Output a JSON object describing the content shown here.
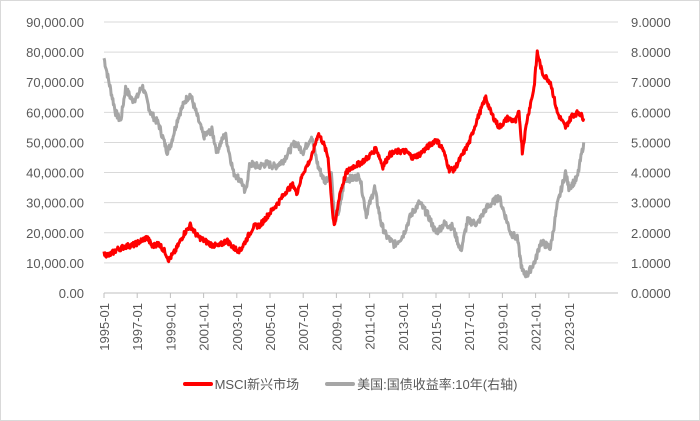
{
  "chart_data": {
    "type": "line",
    "title": "",
    "xlabel": "",
    "ylabel_left": "",
    "ylabel_right": "",
    "x_tick_labels": [
      "1995-01",
      "1997-01",
      "1999-01",
      "2001-01",
      "2003-01",
      "2005-01",
      "2007-01",
      "2009-01",
      "2011-01",
      "2013-01",
      "2015-01",
      "2017-01",
      "2019-01",
      "2021-01",
      "2023-01"
    ],
    "y_left": {
      "range": [
        0,
        90000
      ],
      "tick_labels": [
        "0.00",
        "10,000.00",
        "20,000.00",
        "30,000.00",
        "40,000.00",
        "50,000.00",
        "60,000.00",
        "70,000.00",
        "80,000.00",
        "90,000.00"
      ]
    },
    "y_right": {
      "range": [
        0,
        9
      ],
      "tick_labels": [
        "0.0000",
        "1.0000",
        "2.0000",
        "3.0000",
        "4.0000",
        "5.0000",
        "6.0000",
        "7.0000",
        "8.0000",
        "9.0000"
      ]
    },
    "grid": true,
    "legend_position": "bottom",
    "series": [
      {
        "name": "MSCI新兴市场",
        "axis": "left",
        "color": "#ff0000",
        "x": [
          1995.0,
          1995.3,
          1995.8,
          1996.3,
          1996.8,
          1997.3,
          1997.6,
          1997.9,
          1998.3,
          1998.7,
          1998.9,
          1999.3,
          1999.8,
          2000.2,
          2000.6,
          2001.0,
          2001.5,
          2001.9,
          2002.4,
          2002.8,
          2003.2,
          2003.6,
          2004.0,
          2004.4,
          2004.9,
          2005.5,
          2006.0,
          2006.4,
          2006.6,
          2007.0,
          2007.5,
          2007.9,
          2008.2,
          2008.5,
          2008.8,
          2008.9,
          2009.2,
          2009.6,
          2010.0,
          2010.4,
          2010.9,
          2011.4,
          2011.8,
          2012.2,
          2012.7,
          2013.2,
          2013.6,
          2014.0,
          2014.5,
          2015.0,
          2015.4,
          2015.8,
          2016.1,
          2016.6,
          2017.0,
          2017.5,
          2018.0,
          2018.3,
          2018.8,
          2019.3,
          2019.8,
          2020.0,
          2020.2,
          2020.5,
          2020.9,
          2021.1,
          2021.4,
          2021.9,
          2022.3,
          2022.8,
          2023.2,
          2023.6,
          2023.9
        ],
        "values": [
          13000,
          12500,
          14500,
          15500,
          16000,
          17500,
          18500,
          15500,
          16500,
          13500,
          11000,
          14000,
          19500,
          22500,
          19000,
          17500,
          16000,
          15500,
          17500,
          15000,
          14000,
          18000,
          22000,
          22500,
          26000,
          30000,
          34000,
          36000,
          33000,
          40000,
          45000,
          53000,
          50000,
          45000,
          25000,
          22000,
          33000,
          40000,
          42000,
          43000,
          45000,
          48000,
          42000,
          46000,
          47000,
          47000,
          45000,
          46000,
          48500,
          51000,
          48000,
          41000,
          41000,
          46000,
          50000,
          58000,
          65000,
          60000,
          55000,
          58000,
          57000,
          60000,
          47000,
          58000,
          68000,
          80000,
          73000,
          70000,
          60000,
          55000,
          59000,
          60000,
          58000
        ]
      },
      {
        "name": "美国:国债收益率:10年(右轴)",
        "axis": "right",
        "color": "#a6a6a6",
        "x": [
          1995.0,
          1995.3,
          1995.7,
          1996.0,
          1996.3,
          1996.7,
          1997.0,
          1997.3,
          1997.8,
          1998.3,
          1998.8,
          1999.0,
          1999.5,
          1999.9,
          2000.2,
          2000.6,
          2001.0,
          2001.5,
          2001.8,
          2002.3,
          2002.8,
          2003.3,
          2003.5,
          2003.8,
          2004.3,
          2004.8,
          2005.3,
          2005.8,
          2006.5,
          2007.0,
          2007.5,
          2007.9,
          2008.3,
          2008.7,
          2008.9,
          2009.2,
          2009.5,
          2010.0,
          2010.4,
          2010.8,
          2011.3,
          2011.7,
          2012.0,
          2012.5,
          2013.0,
          2013.5,
          2014.0,
          2014.5,
          2015.0,
          2015.5,
          2016.0,
          2016.5,
          2016.9,
          2017.5,
          2018.0,
          2018.8,
          2019.5,
          2019.9,
          2020.2,
          2020.5,
          2021.0,
          2021.3,
          2021.9,
          2022.3,
          2022.8,
          2023.0,
          2023.5,
          2023.9
        ],
        "values": [
          7.8,
          7.0,
          6.0,
          5.7,
          6.8,
          6.4,
          6.5,
          6.9,
          6.0,
          5.6,
          4.7,
          4.9,
          5.9,
          6.4,
          6.6,
          5.9,
          5.2,
          5.4,
          4.7,
          5.3,
          4.0,
          3.7,
          3.3,
          4.3,
          4.2,
          4.3,
          4.2,
          4.4,
          5.0,
          4.7,
          5.2,
          4.2,
          3.7,
          4.0,
          2.4,
          2.8,
          3.8,
          3.8,
          3.9,
          2.6,
          3.5,
          2.3,
          1.9,
          1.6,
          1.9,
          2.6,
          3.0,
          2.6,
          2.0,
          2.3,
          2.2,
          1.4,
          2.4,
          2.3,
          2.8,
          3.2,
          2.0,
          1.8,
          0.7,
          0.6,
          1.1,
          1.7,
          1.5,
          2.9,
          4.0,
          3.5,
          3.8,
          5.0
        ]
      }
    ]
  },
  "legend": {
    "items": [
      {
        "label": "MSCI新兴市场",
        "color": "#ff0000"
      },
      {
        "label": "美国:国债收益率:10年(右轴)",
        "color": "#a6a6a6"
      }
    ]
  }
}
